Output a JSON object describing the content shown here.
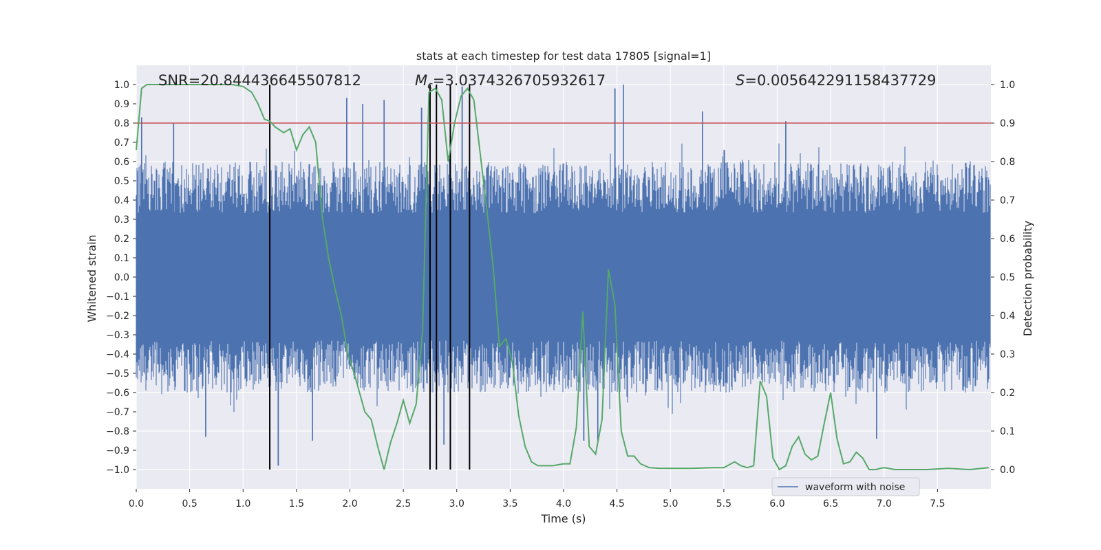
{
  "chart_data": {
    "type": "line",
    "title": "stats at each timestep for test data 17805 [signal=1]",
    "xlabel": "Time (s)",
    "ylabel": "Whitened strain",
    "y2label": "Detection probability",
    "xlim": [
      0.0,
      8.0
    ],
    "ylim": [
      -1.1,
      1.1
    ],
    "y2lim": [
      -0.05,
      1.05
    ],
    "xticks": [
      "0.0",
      "0.5",
      "1.0",
      "1.5",
      "2.0",
      "2.5",
      "3.0",
      "3.5",
      "4.0",
      "4.5",
      "5.0",
      "5.5",
      "6.0",
      "6.5",
      "7.0",
      "7.5"
    ],
    "xtick_values": [
      0.0,
      0.5,
      1.0,
      1.5,
      2.0,
      2.5,
      3.0,
      3.5,
      4.0,
      4.5,
      5.0,
      5.5,
      6.0,
      6.5,
      7.0,
      7.5
    ],
    "yticks": [
      "1.0",
      "0.9",
      "0.8",
      "0.7",
      "0.6",
      "0.5",
      "0.4",
      "0.3",
      "0.2",
      "0.1",
      "0.0",
      "−0.1",
      "−0.2",
      "−0.3",
      "−0.4",
      "−0.5",
      "−0.6",
      "−0.7",
      "−0.8",
      "−0.9",
      "−1.0"
    ],
    "ytick_values": [
      1.0,
      0.9,
      0.8,
      0.7,
      0.6,
      0.5,
      0.4,
      0.3,
      0.2,
      0.1,
      0.0,
      -0.1,
      -0.2,
      -0.3,
      -0.4,
      -0.5,
      -0.6,
      -0.7,
      -0.8,
      -0.9,
      -1.0
    ],
    "y2ticks": [
      "1.0",
      "0.9",
      "0.8",
      "0.7",
      "0.6",
      "0.5",
      "0.4",
      "0.3",
      "0.2",
      "0.1",
      "0.0"
    ],
    "y2tick_values": [
      1.0,
      0.9,
      0.8,
      0.7,
      0.6,
      0.5,
      0.4,
      0.3,
      0.2,
      0.1,
      0.0
    ],
    "annotations": {
      "snr": "SNR=20.844436645507812",
      "mc_symbol": "M",
      "mc_subscript": "c",
      "mc_value": "=3.0374326705932617",
      "s_symbol": "S",
      "s_value": "=0.005642291158437729"
    },
    "threshold": {
      "value": 0.9,
      "axis": "y2",
      "color": "#c44e52"
    },
    "vertical_markers": [
      1.25,
      2.75,
      2.81,
      2.94,
      3.12
    ],
    "series": [
      {
        "name": "waveform with noise",
        "color": "#4c72b0",
        "axis": "y",
        "description": "noisy whitened strain, 8 s sampled",
        "envelope": {
          "typical_max": 0.6,
          "typical_min": -0.6
        },
        "spikes": [
          {
            "t": 0.05,
            "v": 0.83
          },
          {
            "t": 0.35,
            "v": 0.8
          },
          {
            "t": 1.33,
            "v": -0.98
          },
          {
            "t": 0.65,
            "v": -0.83
          },
          {
            "t": 1.65,
            "v": -0.85
          },
          {
            "t": 1.97,
            "v": 0.93
          },
          {
            "t": 2.12,
            "v": 0.9
          },
          {
            "t": 2.32,
            "v": 0.92
          },
          {
            "t": 2.67,
            "v": 0.88
          },
          {
            "t": 4.48,
            "v": 0.98
          },
          {
            "t": 4.56,
            "v": 1.0
          },
          {
            "t": 5.3,
            "v": 0.86
          },
          {
            "t": 6.08,
            "v": 0.81
          },
          {
            "t": 6.93,
            "v": -0.84
          },
          {
            "t": 4.19,
            "v": -0.85
          },
          {
            "t": 4.32,
            "v": -0.85
          },
          {
            "t": 3.05,
            "v": 0.99
          },
          {
            "t": 2.88,
            "v": -0.87
          }
        ]
      },
      {
        "name": "detection probability",
        "color": "#55a868",
        "axis": "y2",
        "x": [
          0.0,
          0.05,
          0.1,
          0.2,
          0.4,
          0.6,
          0.8,
          0.9,
          1.0,
          1.08,
          1.14,
          1.2,
          1.25,
          1.3,
          1.38,
          1.44,
          1.5,
          1.56,
          1.62,
          1.68,
          1.74,
          1.8,
          1.86,
          1.92,
          1.98,
          2.04,
          2.1,
          2.14,
          2.2,
          2.26,
          2.32,
          2.38,
          2.44,
          2.5,
          2.56,
          2.62,
          2.68,
          2.74,
          2.8,
          2.86,
          2.92,
          2.98,
          3.04,
          3.1,
          3.16,
          3.22,
          3.28,
          3.34,
          3.4,
          3.46,
          3.52,
          3.58,
          3.64,
          3.7,
          3.76,
          3.82,
          3.9,
          4.0,
          4.06,
          4.12,
          4.18,
          4.24,
          4.3,
          4.36,
          4.42,
          4.48,
          4.54,
          4.6,
          4.66,
          4.72,
          4.8,
          4.9,
          5.0,
          5.2,
          5.4,
          5.5,
          5.6,
          5.66,
          5.72,
          5.78,
          5.84,
          5.9,
          5.96,
          6.02,
          6.08,
          6.14,
          6.2,
          6.26,
          6.32,
          6.38,
          6.44,
          6.5,
          6.56,
          6.62,
          6.68,
          6.74,
          6.8,
          6.86,
          6.92,
          7.0,
          7.1,
          7.2,
          7.4,
          7.6,
          7.8,
          7.98
        ],
        "values": [
          0.83,
          0.99,
          1.0,
          1.0,
          1.0,
          1.0,
          1.0,
          1.0,
          0.995,
          0.98,
          0.95,
          0.91,
          0.905,
          0.89,
          0.875,
          0.885,
          0.83,
          0.87,
          0.89,
          0.85,
          0.66,
          0.55,
          0.47,
          0.4,
          0.3,
          0.25,
          0.19,
          0.15,
          0.13,
          0.06,
          0.0,
          0.07,
          0.12,
          0.18,
          0.12,
          0.17,
          0.36,
          0.98,
          0.99,
          0.96,
          0.8,
          0.9,
          0.97,
          0.99,
          0.96,
          0.82,
          0.68,
          0.53,
          0.32,
          0.34,
          0.28,
          0.14,
          0.06,
          0.02,
          0.01,
          0.01,
          0.01,
          0.015,
          0.015,
          0.11,
          0.41,
          0.06,
          0.04,
          0.13,
          0.52,
          0.43,
          0.1,
          0.035,
          0.035,
          0.015,
          0.005,
          0.003,
          0.003,
          0.003,
          0.005,
          0.005,
          0.02,
          0.01,
          0.005,
          0.01,
          0.23,
          0.19,
          0.03,
          0.0,
          0.01,
          0.06,
          0.085,
          0.04,
          0.025,
          0.035,
          0.12,
          0.2,
          0.08,
          0.015,
          0.02,
          0.045,
          0.03,
          0.0,
          0.0,
          0.005,
          0.0,
          0.0,
          0.0,
          0.003,
          0.0,
          0.005
        ]
      }
    ],
    "legend": {
      "label": "waveform with noise",
      "placement": "bottom-right"
    },
    "grid": true
  }
}
